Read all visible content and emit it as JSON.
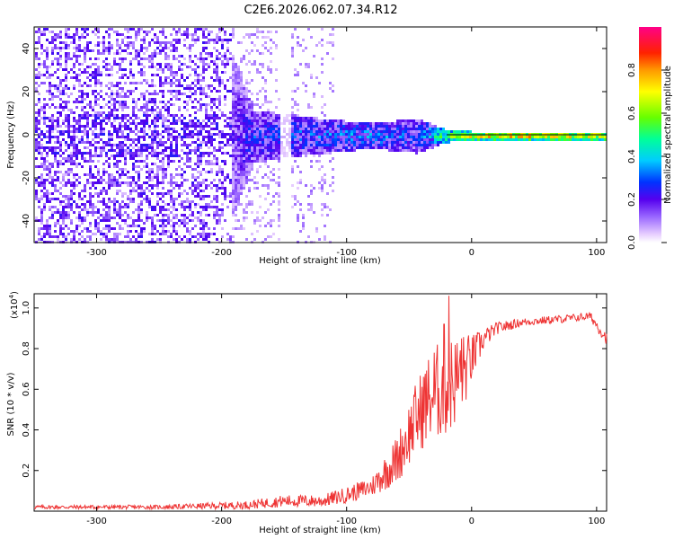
{
  "title": "C2E6.2026.062.07.34.R12",
  "colors": {
    "snr_line": "#ee3333",
    "frame": "#000000",
    "background": "#ffffff"
  },
  "chart_data": [
    {
      "type": "heatmap",
      "name": "spectrogram",
      "xlabel": "Height of straight line (km)",
      "ylabel": "Frequency (Hz)",
      "xlim": [
        -350,
        108
      ],
      "ylim": [
        -50,
        50
      ],
      "xticks": [
        -300,
        -200,
        -100,
        0,
        100
      ],
      "yticks": [
        -40,
        -20,
        0,
        20,
        40
      ],
      "description_points": [
        {
          "x": -350,
          "spread_hz": 50,
          "amp": 0.15
        },
        {
          "x": -200,
          "spread_hz": 50,
          "amp": 0.18
        },
        {
          "x": -175,
          "spread_hz": 12,
          "amp": 0.35
        },
        {
          "x": -120,
          "spread_hz": 8,
          "amp": 0.4
        },
        {
          "x": -80,
          "spread_hz": 6,
          "amp": 0.45
        },
        {
          "x": -45,
          "spread_hz": 8,
          "amp": 0.35
        },
        {
          "x": -20,
          "spread_hz": 3,
          "amp": 0.7
        },
        {
          "x": 0,
          "spread_hz": 2,
          "amp": 0.95
        },
        {
          "x": 100,
          "spread_hz": 2,
          "amp": 0.9
        }
      ],
      "colorbar": {
        "label": "Normalized spectral amplitude",
        "range": [
          0,
          1
        ],
        "ticks": [
          "0.0",
          "0.2",
          "0.4",
          "0.6",
          "0.8"
        ],
        "tick_values": [
          0.0,
          0.2,
          0.4,
          0.6,
          0.8
        ]
      }
    },
    {
      "type": "line",
      "name": "snr",
      "xlabel": "Height of straight line (km)",
      "ylabel": "SNR (10 * v/v)",
      "y_multiplier_label": "(x10",
      "y_multiplier_exp": "4",
      "y_multiplier_close": ")",
      "xlim": [
        -350,
        108
      ],
      "ylim": [
        0,
        1.07
      ],
      "xticks": [
        -300,
        -200,
        -100,
        0,
        100
      ],
      "yticks": [
        "0.2",
        "0.4",
        "0.6",
        "0.8",
        "1.0"
      ],
      "ytick_values": [
        0.2,
        0.4,
        0.6,
        0.8,
        1.0
      ],
      "x": [
        -350,
        -250,
        -180,
        -150,
        -120,
        -100,
        -80,
        -60,
        -45,
        -35,
        -25,
        -18,
        -12,
        -5,
        0,
        10,
        20,
        40,
        60,
        80,
        95,
        102,
        108
      ],
      "y": [
        0.02,
        0.02,
        0.03,
        0.05,
        0.05,
        0.08,
        0.12,
        0.25,
        0.45,
        0.55,
        0.6,
        0.62,
        0.65,
        0.7,
        0.75,
        0.85,
        0.9,
        0.93,
        0.94,
        0.95,
        0.96,
        0.9,
        0.85
      ],
      "noise": [
        0.01,
        0.01,
        0.02,
        0.03,
        0.03,
        0.04,
        0.05,
        0.12,
        0.18,
        0.22,
        0.25,
        0.25,
        0.22,
        0.18,
        0.12,
        0.05,
        0.03,
        0.02,
        0.02,
        0.02,
        0.02,
        0.03,
        0.03
      ],
      "spikes": [
        {
          "x": -18,
          "y": 1.06
        },
        {
          "x": -22,
          "y": 0.92
        },
        {
          "x": -30,
          "y": 0.78
        },
        {
          "x": -8,
          "y": 0.85
        }
      ]
    }
  ]
}
